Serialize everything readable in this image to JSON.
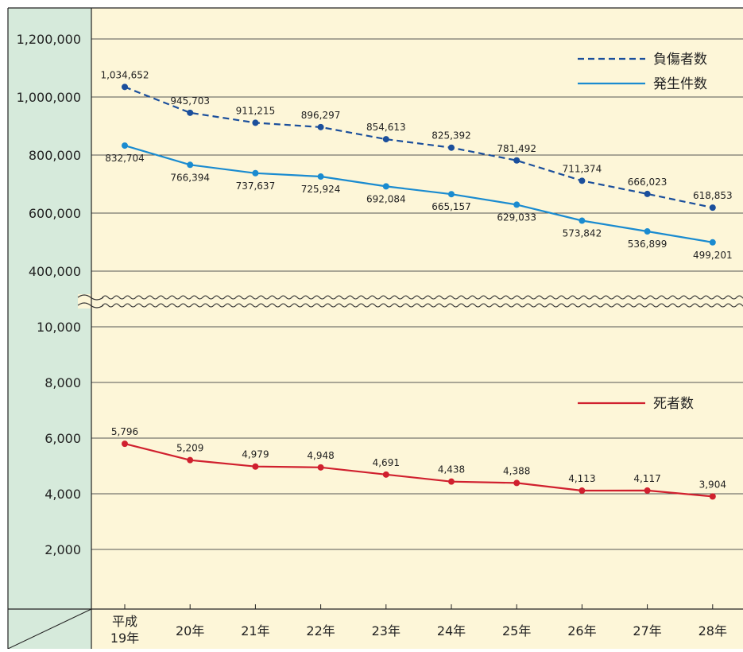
{
  "colors": {
    "background": "#fdf6d8",
    "axis_panel": "#d6eadb",
    "grid": "#555555",
    "frame": "#222222",
    "injuries": "#1b4f9c",
    "accidents": "#1a8bd0",
    "deaths": "#d0202e"
  },
  "chart_data": [
    {
      "type": "line",
      "y_tick_labels": [
        "1,200,000",
        "1,000,000",
        "800,000",
        "600,000",
        "400,000"
      ],
      "ylim": [
        400000,
        1200000
      ],
      "axis_break_below": true,
      "grid": true,
      "legend_position": "top-right",
      "series": [
        {
          "name": "負傷者数",
          "style": "dashed",
          "color": "#1b4f9c",
          "values": [
            1034652,
            945703,
            911215,
            896297,
            854613,
            825392,
            781492,
            711374,
            666023,
            618853
          ],
          "labels": [
            "1,034,652",
            "945,703",
            "911,215",
            "896,297",
            "854,613",
            "825,392",
            "781,492",
            "711,374",
            "666,023",
            "618,853"
          ]
        },
        {
          "name": "発生件数",
          "style": "solid",
          "color": "#1a8bd0",
          "values": [
            832704,
            766394,
            737637,
            725924,
            692084,
            665157,
            629033,
            573842,
            536899,
            499201
          ],
          "labels": [
            "832,704",
            "766,394",
            "737,637",
            "725,924",
            "692,084",
            "665,157",
            "629,033",
            "573,842",
            "536,899",
            "499,201"
          ]
        }
      ]
    },
    {
      "type": "line",
      "y_tick_labels": [
        "10,000",
        "8,000",
        "6,000",
        "4,000",
        "2,000"
      ],
      "ylim": [
        0,
        10000
      ],
      "grid": true,
      "legend_position": "right",
      "series": [
        {
          "name": "死者数",
          "style": "solid",
          "color": "#d0202e",
          "values": [
            5796,
            5209,
            4979,
            4948,
            4691,
            4438,
            4388,
            4113,
            4117,
            3904
          ],
          "labels": [
            "5,796",
            "5,209",
            "4,979",
            "4,948",
            "4,691",
            "4,438",
            "4,388",
            "4,113",
            "4,117",
            "3,904"
          ]
        }
      ]
    }
  ],
  "x_categories": [
    [
      "平成",
      "19年"
    ],
    [
      "20年"
    ],
    [
      "21年"
    ],
    [
      "22年"
    ],
    [
      "23年"
    ],
    [
      "24年"
    ],
    [
      "25年"
    ],
    [
      "26年"
    ],
    [
      "27年"
    ],
    [
      "28年"
    ]
  ]
}
